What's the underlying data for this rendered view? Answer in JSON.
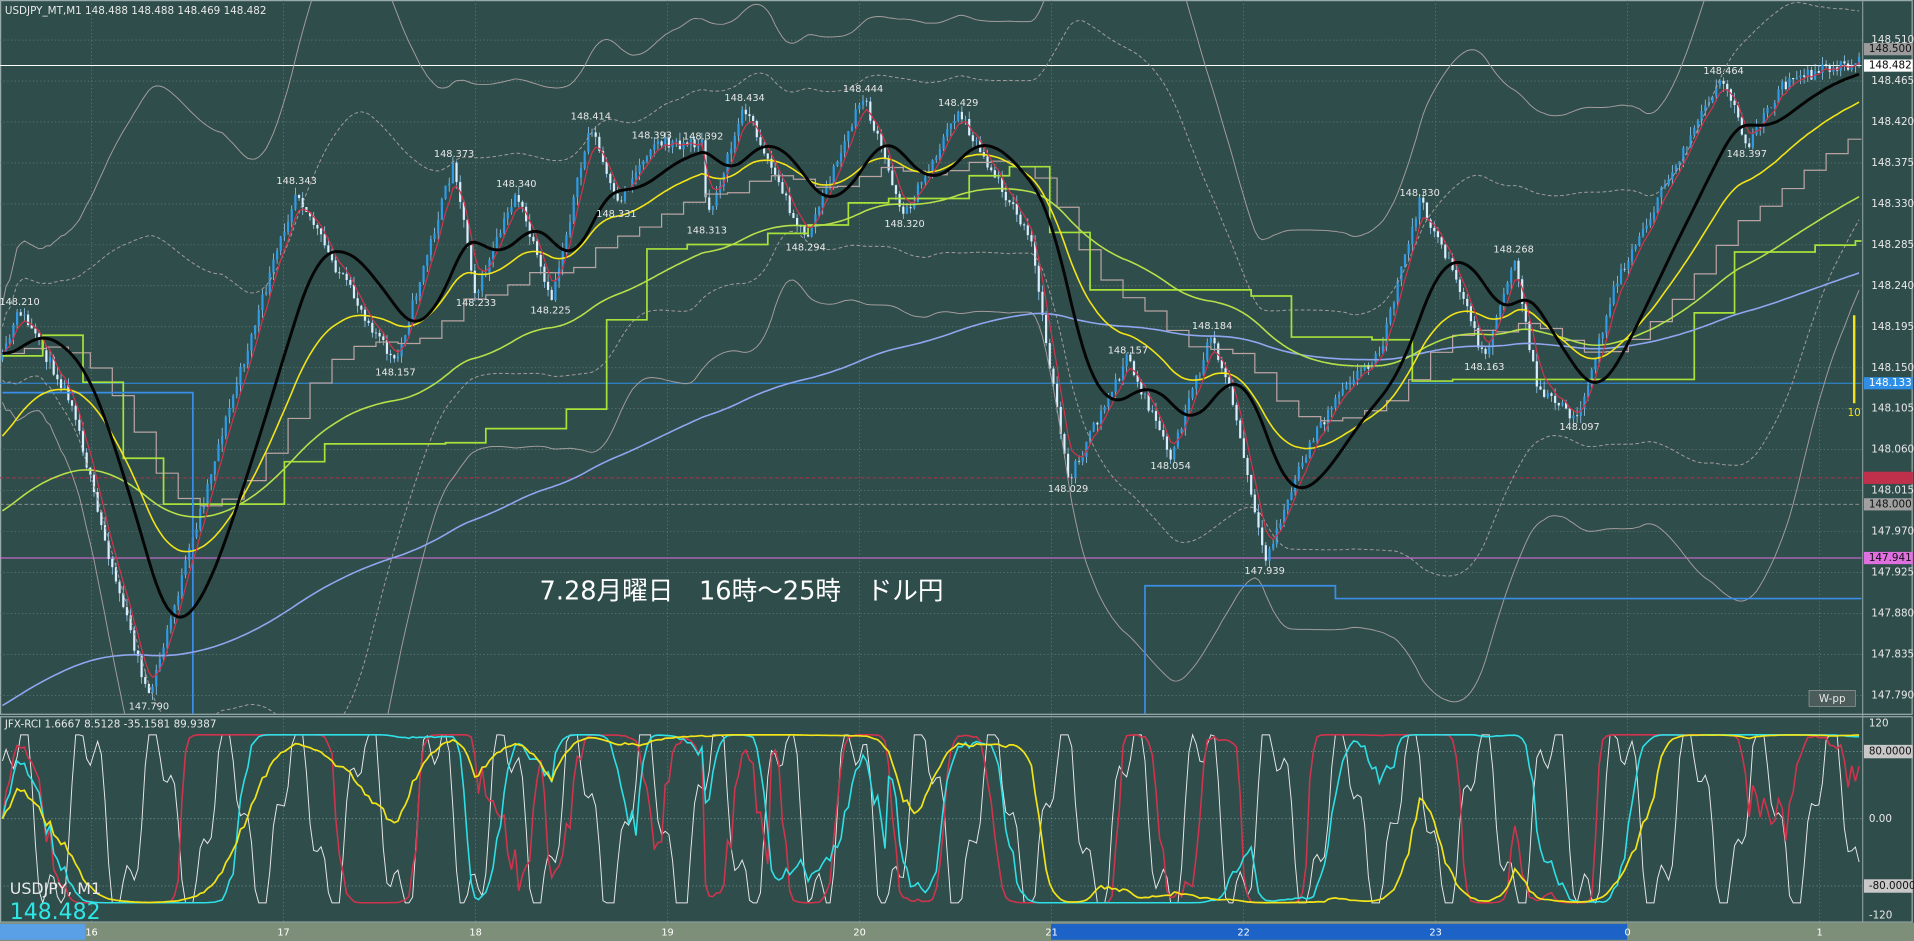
{
  "header": {
    "symbol_line": "USDJPY_MT,M1  148.488 148.488 148.469 148.482",
    "indicator_line": "JFX-RCI 1.6667 8.5128 -35.1581 89.9387",
    "symbol": "USDJPY, M1",
    "bid": "148.482",
    "caption": "7.28月曜日　16時～25時　ドル円",
    "pivot_tag": "W-pp",
    "bar_count": "10"
  },
  "price_axis": {
    "ylim": [
      147.77,
      148.554
    ],
    "ticks": [
      {
        "value": 148.51,
        "label": "148.510"
      },
      {
        "value": 148.465,
        "label": "148.465"
      },
      {
        "value": 148.42,
        "label": "148.420"
      },
      {
        "value": 148.375,
        "label": "148.375"
      },
      {
        "value": 148.33,
        "label": "148.330"
      },
      {
        "value": 148.285,
        "label": "148.285"
      },
      {
        "value": 148.24,
        "label": "148.240"
      },
      {
        "value": 148.195,
        "label": "148.195"
      },
      {
        "value": 148.15,
        "label": "148.150"
      },
      {
        "value": 148.105,
        "label": "148.105"
      },
      {
        "value": 148.06,
        "label": "148.060"
      },
      {
        "value": 148.015,
        "label": "148.015"
      },
      {
        "value": 147.97,
        "label": "147.970"
      },
      {
        "value": 147.925,
        "label": "147.925"
      },
      {
        "value": 147.88,
        "label": "147.880"
      },
      {
        "value": 147.835,
        "label": "147.835"
      },
      {
        "value": 147.79,
        "label": "147.790"
      }
    ]
  },
  "price_markers": [
    {
      "value": 148.5,
      "label": "148.500"
    },
    {
      "value": 148.482,
      "label": "148.482"
    },
    {
      "value": 148.133,
      "label": "148.133"
    },
    {
      "value": 148.0,
      "label": "148.000"
    },
    {
      "value": 147.941,
      "label": "147.941"
    }
  ],
  "annotations": [
    "148.210",
    "147.790",
    "148.343",
    "148.157",
    "148.373",
    "148.233",
    "148.340",
    "148.225",
    "148.414",
    "148.331",
    "148.393",
    "148.392",
    "148.313",
    "148.434",
    "148.294",
    "148.444",
    "148.320",
    "148.429",
    "148.029",
    "148.157",
    "148.054",
    "148.184",
    "147.939",
    "148.330",
    "148.163",
    "148.268",
    "148.097",
    "148.464",
    "148.397"
  ],
  "time_axis": [
    "16",
    "17",
    "18",
    "19",
    "20",
    "21",
    "22",
    "23",
    "0",
    "1"
  ],
  "rci_axis": {
    "ylim": [
      -120,
      120
    ],
    "ticks": [
      120,
      {
        "value": 80,
        "label": "80.0000"
      },
      {
        "value": 0,
        "label": "0.00"
      },
      {
        "value": -80,
        "label": "-80.0000"
      },
      -120
    ]
  }
}
